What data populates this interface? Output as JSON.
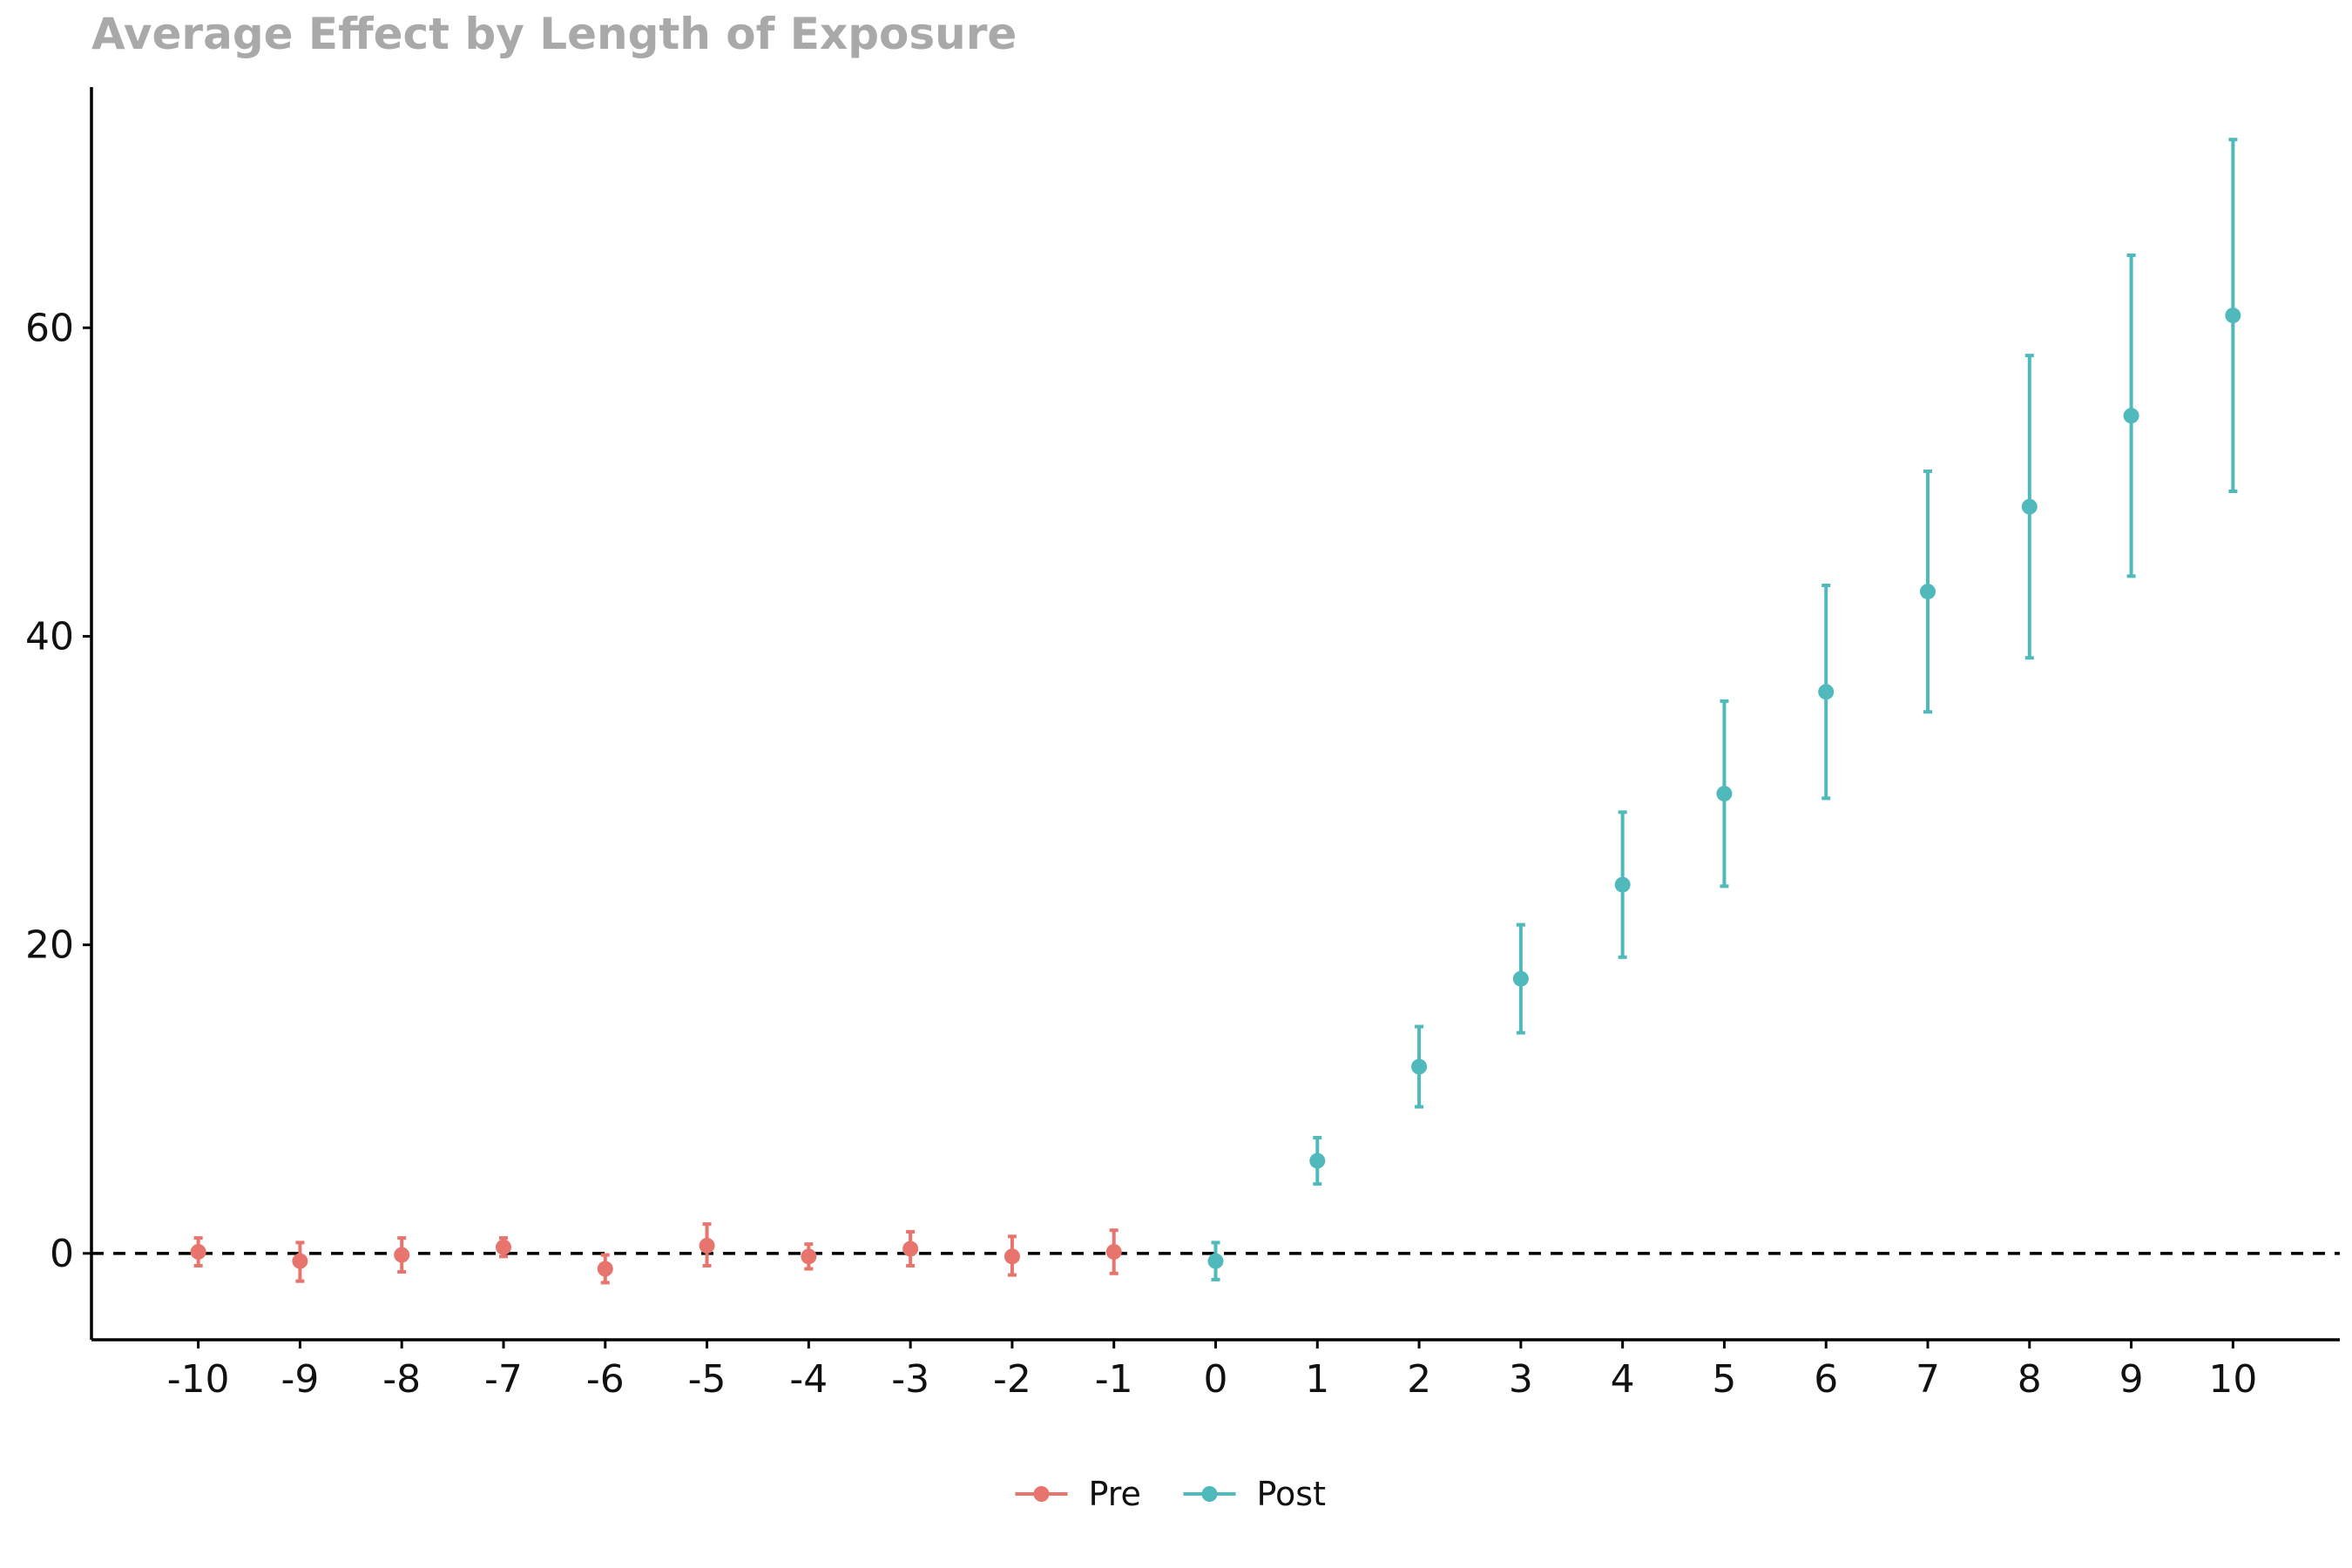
{
  "chart_data": {
    "type": "scatter",
    "title": "Average Effect by Length of Exposure",
    "xlabel": "",
    "ylabel": "",
    "x_ticks": [
      -10,
      -9,
      -8,
      -7,
      -6,
      -5,
      -4,
      -3,
      -2,
      -1,
      0,
      1,
      2,
      3,
      4,
      5,
      6,
      7,
      8,
      9,
      10
    ],
    "y_ticks": [
      0,
      20,
      40,
      60
    ],
    "xlim": [
      -11.05,
      11.05
    ],
    "ylim": [
      -5.6,
      75.6
    ],
    "reference_line": {
      "y": 0,
      "style": "dashed",
      "color": "#000000"
    },
    "grid": false,
    "legend_position": "bottom",
    "series": [
      {
        "name": "Pre",
        "color": "#E7756D",
        "points": [
          {
            "x": -10,
            "y": 0.1,
            "lo": -0.8,
            "hi": 1.0
          },
          {
            "x": -9,
            "y": -0.5,
            "lo": -1.8,
            "hi": 0.7
          },
          {
            "x": -8,
            "y": -0.1,
            "lo": -1.2,
            "hi": 1.0
          },
          {
            "x": -7,
            "y": 0.4,
            "lo": -0.2,
            "hi": 1.0
          },
          {
            "x": -6,
            "y": -1.0,
            "lo": -1.9,
            "hi": -0.1
          },
          {
            "x": -5,
            "y": 0.5,
            "lo": -0.8,
            "hi": 1.9
          },
          {
            "x": -4,
            "y": -0.2,
            "lo": -1.0,
            "hi": 0.6
          },
          {
            "x": -3,
            "y": 0.3,
            "lo": -0.8,
            "hi": 1.4
          },
          {
            "x": -2,
            "y": -0.2,
            "lo": -1.4,
            "hi": 1.1
          },
          {
            "x": -1,
            "y": 0.1,
            "lo": -1.3,
            "hi": 1.5
          }
        ]
      },
      {
        "name": "Post",
        "color": "#4FB9BC",
        "points": [
          {
            "x": 0,
            "y": -0.5,
            "lo": -1.7,
            "hi": 0.7
          },
          {
            "x": 1,
            "y": 6.0,
            "lo": 4.5,
            "hi": 7.5
          },
          {
            "x": 2,
            "y": 12.1,
            "lo": 9.5,
            "hi": 14.7
          },
          {
            "x": 3,
            "y": 17.8,
            "lo": 14.3,
            "hi": 21.3
          },
          {
            "x": 4,
            "y": 23.9,
            "lo": 19.2,
            "hi": 28.6
          },
          {
            "x": 5,
            "y": 29.8,
            "lo": 23.8,
            "hi": 35.8
          },
          {
            "x": 6,
            "y": 36.4,
            "lo": 29.5,
            "hi": 43.3
          },
          {
            "x": 7,
            "y": 42.9,
            "lo": 35.1,
            "hi": 50.7
          },
          {
            "x": 8,
            "y": 48.4,
            "lo": 38.6,
            "hi": 58.2
          },
          {
            "x": 9,
            "y": 54.3,
            "lo": 43.9,
            "hi": 64.7
          },
          {
            "x": 10,
            "y": 60.8,
            "lo": 49.4,
            "hi": 72.2
          }
        ]
      }
    ]
  }
}
